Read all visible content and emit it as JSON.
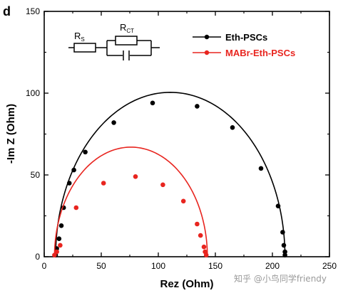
{
  "chart_data": {
    "type": "scatter",
    "panel_label": "d",
    "xlabel": "Rez (Ohm)",
    "ylabel": "-Im Z (Ohm)",
    "xlim": [
      0,
      250
    ],
    "ylim": [
      0,
      150
    ],
    "xticks": [
      "0",
      "50",
      "100",
      "150",
      "200",
      "250"
    ],
    "yticks": [
      "0",
      "50",
      "100",
      "150"
    ],
    "legend_position": "top-right",
    "circuit": {
      "r1": "R",
      "r1_sub": "S",
      "r2": "R",
      "r2_sub": "CT"
    },
    "series": [
      {
        "name": "Eth-PSCs",
        "color": "#000000",
        "x": [
          10,
          11,
          13,
          15,
          17,
          22,
          26,
          36,
          61,
          95,
          134,
          165,
          190,
          205,
          209,
          210,
          211,
          211
        ],
        "y": [
          1,
          5,
          11,
          19,
          30,
          45,
          53,
          64,
          82,
          94,
          92,
          79,
          54,
          31,
          15,
          7,
          3,
          1
        ],
        "fit": {
          "center": 110.5,
          "radius": 100.5
        }
      },
      {
        "name": "MABr-Eth-PSCs",
        "color": "#e8251f",
        "x": [
          9,
          11,
          14,
          28,
          52,
          80,
          104,
          122,
          134,
          137,
          140,
          141,
          142
        ],
        "y": [
          1,
          3,
          7,
          30,
          45,
          49,
          44,
          34,
          20,
          13,
          6,
          3,
          1
        ],
        "fit": {
          "center": 76,
          "radius": 67
        }
      }
    ]
  },
  "watermark": "知乎 @小鸟同学friendy"
}
